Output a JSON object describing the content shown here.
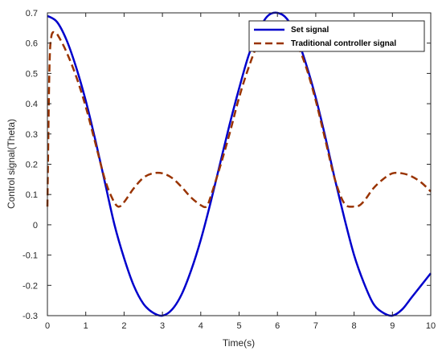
{
  "chart_data": {
    "type": "line",
    "title": "",
    "xlabel": "Time(s)",
    "ylabel": "Control signal(Theta)",
    "xlim": [
      0,
      10
    ],
    "ylim": [
      -0.3,
      0.7
    ],
    "xticks": [
      0,
      1,
      2,
      3,
      4,
      5,
      6,
      7,
      8,
      9,
      10
    ],
    "yticks": [
      -0.3,
      -0.2,
      -0.1,
      0,
      0.1,
      0.2,
      0.3,
      0.4,
      0.5,
      0.6,
      0.7
    ],
    "grid": false,
    "box": true,
    "legend_position": "top-right",
    "series": [
      {
        "name": "Set signal",
        "color": "#0000cc",
        "style": "solid",
        "x": [
          0,
          0.25,
          0.5,
          0.75,
          1.0,
          1.25,
          1.5,
          1.75,
          2.0,
          2.25,
          2.5,
          2.75,
          3.0,
          3.25,
          3.5,
          3.75,
          4.0,
          4.25,
          4.5,
          4.75,
          5.0,
          5.25,
          5.5,
          5.75,
          6.0,
          6.25,
          6.5,
          6.75,
          7.0,
          7.25,
          7.5,
          7.75,
          8.0,
          8.25,
          8.5,
          8.75,
          9.0,
          9.25,
          9.5,
          9.75,
          10.0
        ],
        "y": [
          0.69,
          0.67,
          0.61,
          0.52,
          0.41,
          0.28,
          0.14,
          0.0,
          -0.11,
          -0.2,
          -0.26,
          -0.29,
          -0.3,
          -0.28,
          -0.23,
          -0.15,
          -0.05,
          0.07,
          0.2,
          0.33,
          0.45,
          0.56,
          0.64,
          0.69,
          0.7,
          0.68,
          0.62,
          0.53,
          0.42,
          0.29,
          0.15,
          0.02,
          -0.1,
          -0.19,
          -0.26,
          -0.29,
          -0.3,
          -0.28,
          -0.24,
          -0.2,
          -0.16
        ]
      },
      {
        "name": "Traditional controller signal",
        "color": "#993300",
        "style": "dashed",
        "x": [
          0,
          0.05,
          0.1,
          0.2,
          0.3,
          0.5,
          0.75,
          1.0,
          1.25,
          1.5,
          1.7,
          1.85,
          2.0,
          2.25,
          2.5,
          2.75,
          3.0,
          3.25,
          3.5,
          3.75,
          4.0,
          4.15,
          4.25,
          4.5,
          4.75,
          5.0,
          5.25,
          5.5,
          5.75,
          6.0,
          6.25,
          6.5,
          6.75,
          7.0,
          7.25,
          7.5,
          7.75,
          8.0,
          8.15,
          8.3,
          8.5,
          8.75,
          9.0,
          9.25,
          9.5,
          9.75,
          10.0
        ],
        "y": [
          0.06,
          0.5,
          0.62,
          0.635,
          0.62,
          0.57,
          0.49,
          0.39,
          0.27,
          0.15,
          0.085,
          0.06,
          0.075,
          0.12,
          0.155,
          0.17,
          0.17,
          0.155,
          0.125,
          0.09,
          0.065,
          0.06,
          0.09,
          0.19,
          0.3,
          0.42,
          0.52,
          0.6,
          0.64,
          0.655,
          0.65,
          0.6,
          0.52,
          0.41,
          0.28,
          0.15,
          0.07,
          0.06,
          0.065,
          0.085,
          0.12,
          0.15,
          0.17,
          0.17,
          0.16,
          0.14,
          0.11
        ]
      }
    ]
  }
}
